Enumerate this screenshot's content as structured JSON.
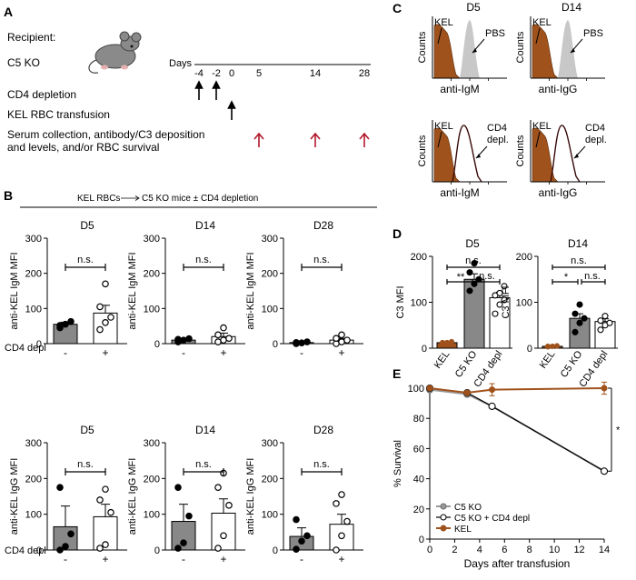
{
  "panels": {
    "A": {
      "label": "A",
      "recipient": "Recipient:",
      "strain": "C5 KO",
      "days_label": "Days",
      "day_ticks": [
        "-4",
        "-2",
        "0",
        "5",
        "14",
        "28"
      ],
      "steps": [
        "CD4 depletion",
        "KEL RBC transfusion",
        "Serum collection, antibody/C3 deposition",
        "and levels, and/or RBC survival"
      ]
    },
    "B": {
      "label": "B",
      "header": "KEL RBCs",
      "header_right": "C5 KO mice ± CD4 depletion",
      "group_label": "CD4 depl",
      "x_ticks": [
        "-",
        "+"
      ],
      "sig": "n.s.",
      "y_ticks": [
        "0",
        "100",
        "200",
        "300"
      ]
    },
    "C": {
      "label": "C",
      "titles": [
        "D5",
        "D14"
      ],
      "counts": "Counts",
      "kel": "KEL",
      "pbs": "PBS",
      "cd4_line1": "CD4",
      "cd4_line2": "depl.",
      "x_top": [
        "anti-IgM",
        "anti-IgG"
      ],
      "x_bottom": [
        "anti-IgM",
        "anti-IgG"
      ]
    },
    "D": {
      "label": "D",
      "ylabel": "C3 MFI",
      "y_ticks": [
        "0",
        "100",
        "200"
      ],
      "categories": [
        "KEL",
        "C5 KO",
        "CD4 depl"
      ],
      "sig_top": "n.s.",
      "sig_left": [
        "**",
        "*"
      ],
      "sig_right": "n.s."
    },
    "E": {
      "label": "E",
      "ylabel": "% Survival",
      "xlabel": "Days after transfusion",
      "y_ticks": [
        "0",
        "20",
        "40",
        "60",
        "80",
        "100"
      ],
      "x_ticks": [
        "0",
        "2",
        "4",
        "6",
        "8",
        "10",
        "12",
        "14"
      ],
      "sig": "*"
    }
  },
  "colors": {
    "kel": "#a0521c",
    "gray_bar": "#888888",
    "arrow_red": "#b2182b",
    "pbs_fill": "#c8c8c8"
  },
  "chart_data": [
    {
      "type": "bar",
      "title": "D5",
      "ylabel": "anti-KEL IgM MFI",
      "categories": [
        "-",
        "+"
      ],
      "values": [
        55,
        87
      ],
      "errors": [
        6,
        22
      ],
      "points": [
        [
          45,
          55,
          63,
          52
        ],
        [
          40,
          60,
          75,
          105,
          170
        ]
      ],
      "ylim": [
        0,
        300
      ]
    },
    {
      "type": "bar",
      "title": "D14",
      "ylabel": "anti-KEL IgM MFI",
      "categories": [
        "-",
        "+"
      ],
      "values": [
        10,
        20
      ],
      "errors": [
        4,
        10
      ],
      "points": [
        [
          5,
          10,
          14,
          12
        ],
        [
          5,
          10,
          15,
          25,
          45
        ]
      ],
      "ylim": [
        0,
        300
      ]
    },
    {
      "type": "bar",
      "title": "D28",
      "ylabel": "anti-KEL IgM MFI",
      "categories": [
        "-",
        "+"
      ],
      "values": [
        3,
        10
      ],
      "errors": [
        2,
        5
      ],
      "points": [
        [
          0,
          2,
          5,
          3
        ],
        [
          0,
          5,
          10,
          15,
          25
        ]
      ],
      "ylim": [
        0,
        300
      ]
    },
    {
      "type": "bar",
      "title": "D5",
      "ylabel": "anti-KEL IgG MFI",
      "categories": [
        "-",
        "+"
      ],
      "values": [
        65,
        93
      ],
      "errors": [
        58,
        35
      ],
      "points": [
        [
          0,
          10,
          45,
          175
        ],
        [
          5,
          15,
          105,
          140,
          170
        ]
      ],
      "ylim": [
        0,
        300
      ]
    },
    {
      "type": "bar",
      "title": "D14",
      "ylabel": "anti-KEL IgG MFI",
      "categories": [
        "-",
        "+"
      ],
      "values": [
        80,
        103
      ],
      "errors": [
        48,
        40
      ],
      "points": [
        [
          5,
          20,
          95,
          175
        ],
        [
          5,
          40,
          125,
          175,
          215
        ]
      ],
      "ylim": [
        0,
        300
      ]
    },
    {
      "type": "bar",
      "title": "D28",
      "ylabel": "anti-KEL IgG MFI",
      "categories": [
        "-",
        "+"
      ],
      "values": [
        38,
        72
      ],
      "errors": [
        24,
        28
      ],
      "points": [
        [
          2,
          25,
          40,
          85
        ],
        [
          0,
          40,
          80,
          130,
          155
        ]
      ],
      "ylim": [
        0,
        300
      ]
    },
    {
      "type": "bar",
      "title": "D5",
      "ylabel": "C3 MFI",
      "categories": [
        "KEL",
        "C5 KO",
        "CD4 depl"
      ],
      "values": [
        12,
        150,
        110
      ],
      "errors": [
        2,
        12,
        12
      ],
      "points": [
        [
          10,
          12,
          14,
          12
        ],
        [
          125,
          140,
          150,
          165,
          185
        ],
        [
          75,
          95,
          105,
          115,
          120,
          135
        ]
      ],
      "ylim": [
        0,
        200
      ]
    },
    {
      "type": "bar",
      "title": "D14",
      "ylabel": "C3 MFI",
      "categories": [
        "KEL",
        "C5 KO",
        "CD4 depl"
      ],
      "values": [
        4,
        65,
        58
      ],
      "errors": [
        1,
        10,
        6
      ],
      "points": [
        [
          3,
          4,
          5,
          4
        ],
        [
          35,
          55,
          65,
          75,
          95
        ],
        [
          40,
          50,
          55,
          60,
          70
        ]
      ],
      "ylim": [
        0,
        200
      ]
    },
    {
      "type": "line",
      "xlabel": "Days after transfusion",
      "ylabel": "% Survival",
      "xlim": [
        0,
        14
      ],
      "ylim": [
        0,
        100
      ],
      "series": [
        {
          "name": "C5 KO",
          "x": [
            0,
            3,
            5,
            14
          ],
          "y": [
            99,
            96,
            88,
            45
          ]
        },
        {
          "name": "C5 KO + CD4 depl",
          "x": [
            0,
            3,
            5,
            14
          ],
          "y": [
            100,
            97,
            88,
            45
          ]
        },
        {
          "name": "KEL",
          "x": [
            0,
            3,
            5,
            14
          ],
          "y": [
            100,
            97,
            99,
            100
          ],
          "err": [
            0,
            1,
            4,
            4
          ]
        }
      ]
    }
  ]
}
